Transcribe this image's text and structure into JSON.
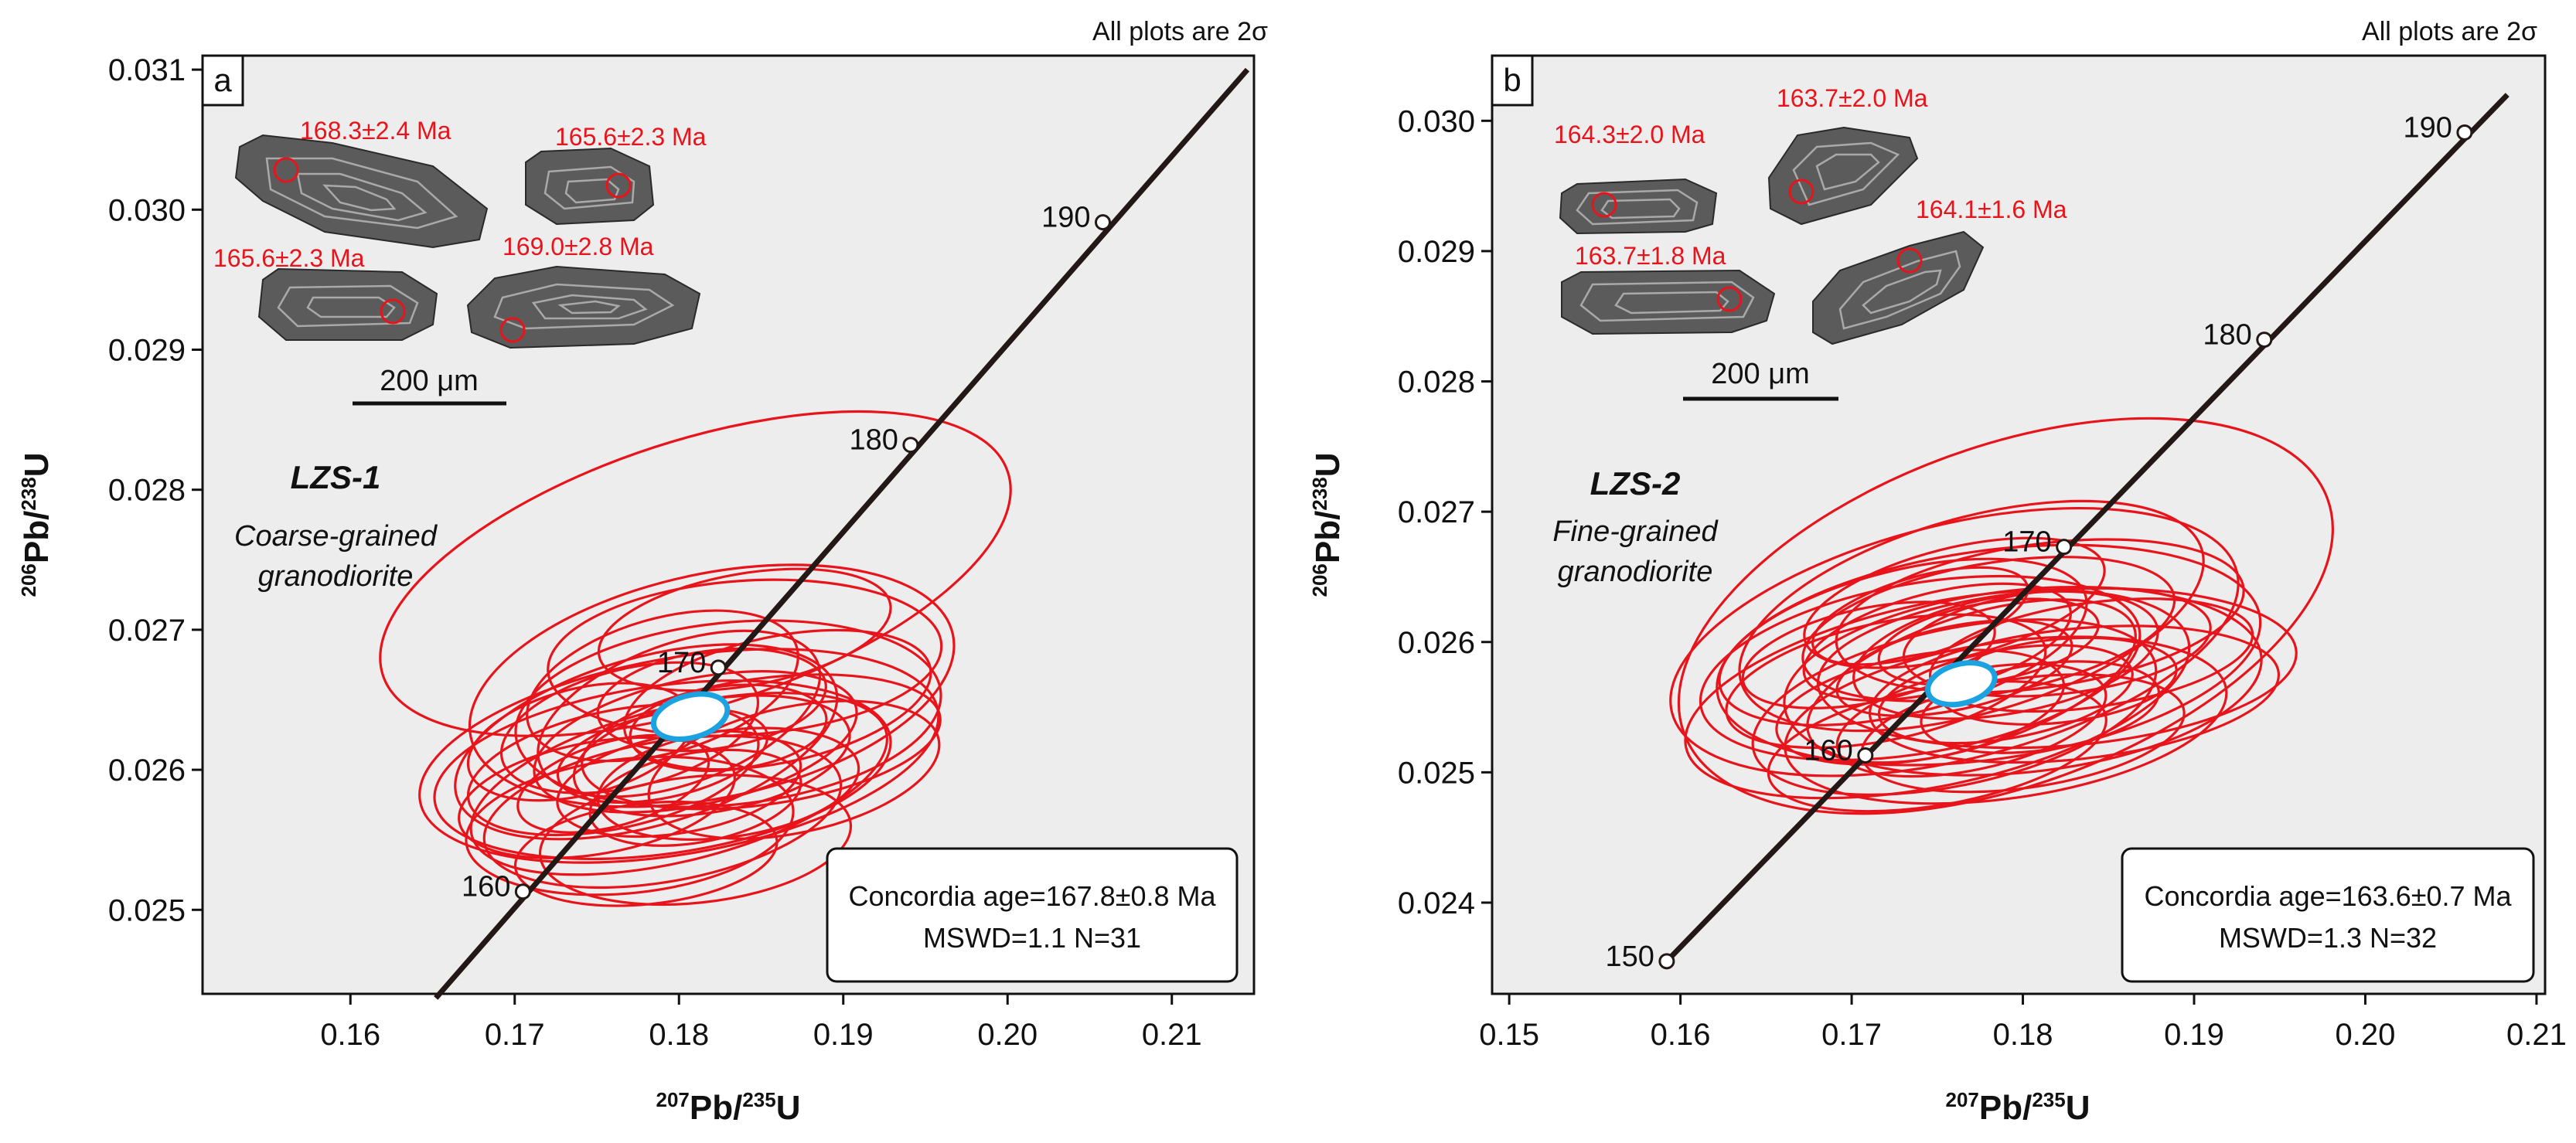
{
  "figure_note": "All plots are 2σ",
  "chart_data": [
    {
      "type": "scatter",
      "panel": "a",
      "sample": "LZS-1",
      "rock_type": [
        "Coarse-grained",
        "granodiorite"
      ],
      "xlabel": {
        "a": "207",
        "b": "Pb/",
        "c": "235",
        "d": "U"
      },
      "ylabel": {
        "a": "206",
        "b": "Pb/",
        "c": "238",
        "d": "U"
      },
      "xlim": [
        0.151,
        0.215
      ],
      "ylim": [
        0.0244,
        0.0311
      ],
      "xticks": [
        "0.16",
        "0.17",
        "0.18",
        "0.19",
        "0.20",
        "0.21"
      ],
      "yticks": [
        "0.025",
        "0.026",
        "0.027",
        "0.028",
        "0.029",
        "0.030",
        "0.031"
      ],
      "concordia_ages_Ma": [
        160,
        170,
        180,
        190
      ],
      "concordia_points": [
        [
          0.1705,
          0.02513
        ],
        [
          0.1824,
          0.02673
        ],
        [
          0.1941,
          0.02832
        ],
        [
          0.2058,
          0.02991
        ]
      ],
      "concordia_line": [
        [
          0.1652,
          0.02437
        ],
        [
          0.2146,
          0.031
        ]
      ],
      "concordia_result": {
        "line1": "Concordia age=167.8±0.8 Ma",
        "line2": "MSWD=1.1  N=31"
      },
      "mean_ellipse": {
        "cx": 0.1807,
        "cy": 0.02638,
        "rx": 0.0023,
        "ry": 0.00015,
        "angle": -15
      },
      "ellipses": [
        {
          "cx": 0.181,
          "cy": 0.0274,
          "rx": 0.02,
          "ry": 0.00095,
          "angle": -18
        },
        {
          "cx": 0.18,
          "cy": 0.0261,
          "rx": 0.016,
          "ry": 0.0007,
          "angle": -10
        },
        {
          "cx": 0.182,
          "cy": 0.0266,
          "rx": 0.015,
          "ry": 0.0008,
          "angle": -12
        },
        {
          "cx": 0.179,
          "cy": 0.026,
          "rx": 0.014,
          "ry": 0.0006,
          "angle": -8
        },
        {
          "cx": 0.18,
          "cy": 0.0259,
          "rx": 0.013,
          "ry": 0.00055,
          "angle": -14
        },
        {
          "cx": 0.183,
          "cy": 0.0264,
          "rx": 0.013,
          "ry": 0.00065,
          "angle": -6
        },
        {
          "cx": 0.178,
          "cy": 0.0262,
          "rx": 0.012,
          "ry": 0.0006,
          "angle": -16
        },
        {
          "cx": 0.179,
          "cy": 0.0257,
          "rx": 0.011,
          "ry": 0.0005,
          "angle": -10
        },
        {
          "cx": 0.184,
          "cy": 0.0268,
          "rx": 0.012,
          "ry": 0.00055,
          "angle": -4
        },
        {
          "cx": 0.181,
          "cy": 0.0262,
          "rx": 0.01,
          "ry": 0.00045,
          "angle": -12
        },
        {
          "cx": 0.177,
          "cy": 0.0256,
          "rx": 0.01,
          "ry": 0.00048,
          "angle": -6
        },
        {
          "cx": 0.18,
          "cy": 0.0264,
          "rx": 0.009,
          "ry": 0.0005,
          "angle": -20
        },
        {
          "cx": 0.185,
          "cy": 0.0262,
          "rx": 0.011,
          "ry": 0.00045,
          "angle": -8
        },
        {
          "cx": 0.176,
          "cy": 0.026,
          "rx": 0.009,
          "ry": 0.00042,
          "angle": -12
        },
        {
          "cx": 0.181,
          "cy": 0.0255,
          "rx": 0.0095,
          "ry": 0.00045,
          "angle": -6
        },
        {
          "cx": 0.182,
          "cy": 0.0261,
          "rx": 0.0085,
          "ry": 0.0004,
          "angle": -10
        },
        {
          "cx": 0.179,
          "cy": 0.0266,
          "rx": 0.0085,
          "ry": 0.00048,
          "angle": -16
        },
        {
          "cx": 0.175,
          "cy": 0.0258,
          "rx": 0.0085,
          "ry": 0.0004,
          "angle": -10
        },
        {
          "cx": 0.186,
          "cy": 0.0265,
          "rx": 0.0095,
          "ry": 0.00045,
          "angle": -12
        },
        {
          "cx": 0.183,
          "cy": 0.0259,
          "rx": 0.008,
          "ry": 0.00038,
          "angle": -8
        },
        {
          "cx": 0.177,
          "cy": 0.0263,
          "rx": 0.008,
          "ry": 0.00042,
          "angle": -14
        },
        {
          "cx": 0.18,
          "cy": 0.0259,
          "rx": 0.0075,
          "ry": 0.00035,
          "angle": -10
        },
        {
          "cx": 0.184,
          "cy": 0.027,
          "rx": 0.009,
          "ry": 0.0004,
          "angle": -10
        },
        {
          "cx": 0.178,
          "cy": 0.0254,
          "rx": 0.008,
          "ry": 0.00036,
          "angle": -6
        },
        {
          "cx": 0.187,
          "cy": 0.026,
          "rx": 0.009,
          "ry": 0.00045,
          "angle": -12
        },
        {
          "cx": 0.174,
          "cy": 0.0262,
          "rx": 0.007,
          "ry": 0.00038,
          "angle": -14
        },
        {
          "cx": 0.182,
          "cy": 0.0265,
          "rx": 0.007,
          "ry": 0.00035,
          "angle": -8
        },
        {
          "cx": 0.179,
          "cy": 0.0261,
          "rx": 0.0065,
          "ry": 0.0003,
          "angle": -12
        },
        {
          "cx": 0.181,
          "cy": 0.0258,
          "rx": 0.0065,
          "ry": 0.00032,
          "angle": -10
        },
        {
          "cx": 0.176,
          "cy": 0.0259,
          "rx": 0.006,
          "ry": 0.0003,
          "angle": -16
        },
        {
          "cx": 0.183,
          "cy": 0.0263,
          "rx": 0.006,
          "ry": 0.0003,
          "angle": -6
        }
      ],
      "zircon_ages": [
        "168.3±2.4 Ma",
        "165.6±2.3 Ma",
        "165.6±2.3 Ma",
        "169.0±2.8 Ma"
      ],
      "scale_label": "200 μm"
    },
    {
      "type": "scatter",
      "panel": "b",
      "sample": "LZS-2",
      "rock_type": [
        "Fine-grained",
        "granodiorite"
      ],
      "xlabel": {
        "a": "207",
        "b": "Pb/",
        "c": "235",
        "d": "U"
      },
      "ylabel": {
        "a": "206",
        "b": "Pb/",
        "c": "238",
        "d": "U"
      },
      "xlim": [
        0.149,
        0.2105
      ],
      "ylim": [
        0.0233,
        0.0305
      ],
      "xticks": [
        "0.15",
        "0.16",
        "0.17",
        "0.18",
        "0.19",
        "0.20",
        "0.21"
      ],
      "yticks": [
        "0.024",
        "0.025",
        "0.026",
        "0.027",
        "0.028",
        "0.029",
        "0.030"
      ],
      "concordia_ages_Ma": [
        150,
        160,
        170,
        180,
        190
      ],
      "concordia_points": [
        [
          0.1592,
          0.02355
        ],
        [
          0.1708,
          0.02513
        ],
        [
          0.1824,
          0.02673
        ],
        [
          0.1941,
          0.02832
        ],
        [
          0.2058,
          0.02991
        ]
      ],
      "concordia_line": [
        [
          0.1592,
          0.02355
        ],
        [
          0.2083,
          0.0302
        ]
      ],
      "concordia_result": {
        "line1": "Concordia age=163.6±0.7 Ma",
        "line2": "MSWD=1.3  N=32"
      },
      "mean_ellipse": {
        "cx": 0.1764,
        "cy": 0.02568,
        "rx": 0.002,
        "ry": 0.00015,
        "angle": -15
      },
      "ellipses": [
        {
          "cx": 0.179,
          "cy": 0.0262,
          "rx": 0.02,
          "ry": 0.0013,
          "angle": -20
        },
        {
          "cx": 0.176,
          "cy": 0.026,
          "rx": 0.017,
          "ry": 0.0009,
          "angle": -14
        },
        {
          "cx": 0.178,
          "cy": 0.0259,
          "rx": 0.016,
          "ry": 0.0008,
          "angle": -8
        },
        {
          "cx": 0.175,
          "cy": 0.0256,
          "rx": 0.015,
          "ry": 0.0007,
          "angle": -12
        },
        {
          "cx": 0.18,
          "cy": 0.0257,
          "rx": 0.014,
          "ry": 0.0007,
          "angle": -6
        },
        {
          "cx": 0.177,
          "cy": 0.0262,
          "rx": 0.014,
          "ry": 0.00075,
          "angle": -16
        },
        {
          "cx": 0.174,
          "cy": 0.0258,
          "rx": 0.013,
          "ry": 0.00065,
          "angle": -10
        },
        {
          "cx": 0.179,
          "cy": 0.0254,
          "rx": 0.013,
          "ry": 0.0006,
          "angle": -8
        },
        {
          "cx": 0.182,
          "cy": 0.0258,
          "rx": 0.014,
          "ry": 0.0006,
          "angle": -4
        },
        {
          "cx": 0.176,
          "cy": 0.0255,
          "rx": 0.012,
          "ry": 0.0006,
          "angle": -12
        },
        {
          "cx": 0.173,
          "cy": 0.026,
          "rx": 0.011,
          "ry": 0.00055,
          "angle": -14
        },
        {
          "cx": 0.178,
          "cy": 0.0261,
          "rx": 0.011,
          "ry": 0.0005,
          "angle": -10
        },
        {
          "cx": 0.181,
          "cy": 0.0262,
          "rx": 0.012,
          "ry": 0.00055,
          "angle": -8
        },
        {
          "cx": 0.175,
          "cy": 0.0252,
          "rx": 0.01,
          "ry": 0.00045,
          "angle": -10
        },
        {
          "cx": 0.177,
          "cy": 0.0257,
          "rx": 0.01,
          "ry": 0.0005,
          "angle": -18
        },
        {
          "cx": 0.183,
          "cy": 0.0256,
          "rx": 0.012,
          "ry": 0.0005,
          "angle": -6
        },
        {
          "cx": 0.172,
          "cy": 0.0257,
          "rx": 0.0095,
          "ry": 0.00045,
          "angle": -12
        },
        {
          "cx": 0.179,
          "cy": 0.0259,
          "rx": 0.009,
          "ry": 0.00045,
          "angle": -10
        },
        {
          "cx": 0.176,
          "cy": 0.0263,
          "rx": 0.009,
          "ry": 0.00042,
          "angle": -14
        },
        {
          "cx": 0.18,
          "cy": 0.0253,
          "rx": 0.0095,
          "ry": 0.00042,
          "angle": -8
        },
        {
          "cx": 0.174,
          "cy": 0.0255,
          "rx": 0.0085,
          "ry": 0.0004,
          "angle": -10
        },
        {
          "cx": 0.182,
          "cy": 0.026,
          "rx": 0.009,
          "ry": 0.0004,
          "angle": -6
        },
        {
          "cx": 0.177,
          "cy": 0.0254,
          "rx": 0.008,
          "ry": 0.00038,
          "angle": -12
        },
        {
          "cx": 0.175,
          "cy": 0.026,
          "rx": 0.008,
          "ry": 0.00038,
          "angle": -14
        },
        {
          "cx": 0.184,
          "cy": 0.0259,
          "rx": 0.0095,
          "ry": 0.0004,
          "angle": -8
        },
        {
          "cx": 0.171,
          "cy": 0.0259,
          "rx": 0.0075,
          "ry": 0.00036,
          "angle": -12
        },
        {
          "cx": 0.179,
          "cy": 0.0256,
          "rx": 0.0075,
          "ry": 0.00034,
          "angle": -10
        },
        {
          "cx": 0.176,
          "cy": 0.0258,
          "rx": 0.007,
          "ry": 0.00032,
          "angle": -12
        },
        {
          "cx": 0.181,
          "cy": 0.0255,
          "rx": 0.007,
          "ry": 0.00033,
          "angle": -8
        },
        {
          "cx": 0.174,
          "cy": 0.0262,
          "rx": 0.0065,
          "ry": 0.0003,
          "angle": -16
        },
        {
          "cx": 0.178,
          "cy": 0.026,
          "rx": 0.0065,
          "ry": 0.0003,
          "angle": -10
        },
        {
          "cx": 0.182,
          "cy": 0.0257,
          "rx": 0.007,
          "ry": 0.00032,
          "angle": -6
        }
      ],
      "zircon_ages": [
        "164.3±2.0 Ma",
        "163.7±2.0 Ma",
        "163.7±1.8 Ma",
        "164.1±1.6 Ma"
      ],
      "scale_label": "200 μm"
    }
  ]
}
